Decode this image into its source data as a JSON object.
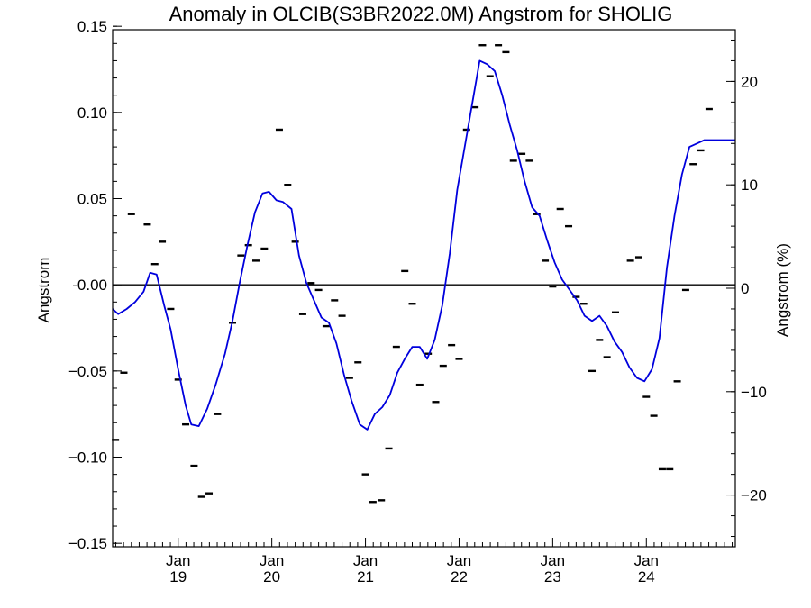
{
  "chart_data": {
    "type": "line",
    "title": "Anomaly in OLCIB(S3BR2022.0M) Angstrom for SHOLIG",
    "ylabel": "Angstrom",
    "ylabel_right": "Angstrom (%)",
    "xlabel": "",
    "ylim": [
      -0.152,
      0.148
    ],
    "ylim_right": [
      -25,
      25
    ],
    "xlim": [
      2018.3,
      2024.95
    ],
    "y_ticks": [
      -0.15,
      -0.1,
      -0.05,
      0.0,
      0.05,
      0.1,
      0.15
    ],
    "y_tick_labels": [
      "−0.15",
      "−0.10",
      "−0.05",
      "-0.00",
      "0.05",
      "0.10",
      "0.15"
    ],
    "y_right_ticks": [
      -20,
      -10,
      0,
      10,
      20
    ],
    "y_right_tick_labels": [
      "−20",
      "−10",
      "0",
      "10",
      "20"
    ],
    "x_ticks": [
      {
        "x": 2019.0,
        "month": "Jan",
        "year": "19"
      },
      {
        "x": 2020.0,
        "month": "Jan",
        "year": "20"
      },
      {
        "x": 2021.0,
        "month": "Jan",
        "year": "21"
      },
      {
        "x": 2022.0,
        "month": "Jan",
        "year": "22"
      },
      {
        "x": 2023.0,
        "month": "Jan",
        "year": "23"
      },
      {
        "x": 2024.0,
        "month": "Jan",
        "year": "24"
      }
    ],
    "zero_line": 0,
    "grid": false,
    "series": [
      {
        "kind": "monthly_points",
        "color": "#000000",
        "points": [
          [
            2018.33,
            -0.09
          ],
          [
            2018.42,
            -0.051
          ],
          [
            2018.5,
            0.041
          ],
          [
            2018.67,
            0.035
          ],
          [
            2018.75,
            0.012
          ],
          [
            2018.83,
            0.025
          ],
          [
            2018.92,
            -0.014
          ],
          [
            2019.0,
            -0.055
          ],
          [
            2019.08,
            -0.081
          ],
          [
            2019.17,
            -0.105
          ],
          [
            2019.25,
            -0.123
          ],
          [
            2019.33,
            -0.121
          ],
          [
            2019.42,
            -0.075
          ],
          [
            2019.58,
            -0.022
          ],
          [
            2019.67,
            0.017
          ],
          [
            2019.75,
            0.023
          ],
          [
            2019.83,
            0.014
          ],
          [
            2019.92,
            0.021
          ],
          [
            2020.08,
            0.09
          ],
          [
            2020.17,
            0.058
          ],
          [
            2020.25,
            0.025
          ],
          [
            2020.33,
            -0.017
          ],
          [
            2020.42,
            0.001
          ],
          [
            2020.5,
            -0.003
          ],
          [
            2020.58,
            -0.024
          ],
          [
            2020.67,
            -0.009
          ],
          [
            2020.75,
            -0.018
          ],
          [
            2020.83,
            -0.054
          ],
          [
            2020.92,
            -0.045
          ],
          [
            2021.0,
            -0.11
          ],
          [
            2021.08,
            -0.126
          ],
          [
            2021.17,
            -0.125
          ],
          [
            2021.25,
            -0.095
          ],
          [
            2021.33,
            -0.036
          ],
          [
            2021.42,
            0.008
          ],
          [
            2021.5,
            -0.011
          ],
          [
            2021.58,
            -0.058
          ],
          [
            2021.67,
            -0.04
          ],
          [
            2021.75,
            -0.068
          ],
          [
            2021.83,
            -0.047
          ],
          [
            2021.92,
            -0.035
          ],
          [
            2022.0,
            -0.043
          ],
          [
            2022.08,
            0.09
          ],
          [
            2022.17,
            0.103
          ],
          [
            2022.25,
            0.139
          ],
          [
            2022.33,
            0.121
          ],
          [
            2022.42,
            0.139
          ],
          [
            2022.5,
            0.135
          ],
          [
            2022.58,
            0.072
          ],
          [
            2022.67,
            0.076
          ],
          [
            2022.75,
            0.072
          ],
          [
            2022.83,
            0.041
          ],
          [
            2022.92,
            0.014
          ],
          [
            2023.0,
            -0.001
          ],
          [
            2023.08,
            0.044
          ],
          [
            2023.17,
            0.034
          ],
          [
            2023.25,
            -0.007
          ],
          [
            2023.33,
            -0.011
          ],
          [
            2023.42,
            -0.05
          ],
          [
            2023.5,
            -0.032
          ],
          [
            2023.58,
            -0.042
          ],
          [
            2023.67,
            -0.016
          ],
          [
            2023.83,
            0.014
          ],
          [
            2023.92,
            0.016
          ],
          [
            2024.0,
            -0.065
          ],
          [
            2024.08,
            -0.076
          ],
          [
            2024.17,
            -0.107
          ],
          [
            2024.25,
            -0.107
          ],
          [
            2024.33,
            -0.056
          ],
          [
            2024.42,
            -0.003
          ],
          [
            2024.5,
            0.07
          ],
          [
            2024.58,
            0.078
          ],
          [
            2024.67,
            0.102
          ]
        ]
      },
      {
        "kind": "smoothed_line",
        "color": "#0000dd",
        "points": [
          [
            2018.3,
            -0.014
          ],
          [
            2018.36,
            -0.017
          ],
          [
            2018.45,
            -0.014
          ],
          [
            2018.54,
            -0.01
          ],
          [
            2018.63,
            -0.004
          ],
          [
            2018.7,
            0.007
          ],
          [
            2018.77,
            0.006
          ],
          [
            2018.85,
            -0.012
          ],
          [
            2018.92,
            -0.026
          ],
          [
            2019.0,
            -0.049
          ],
          [
            2019.08,
            -0.07
          ],
          [
            2019.14,
            -0.081
          ],
          [
            2019.22,
            -0.082
          ],
          [
            2019.31,
            -0.072
          ],
          [
            2019.4,
            -0.058
          ],
          [
            2019.5,
            -0.04
          ],
          [
            2019.58,
            -0.021
          ],
          [
            2019.66,
            0.002
          ],
          [
            2019.74,
            0.023
          ],
          [
            2019.82,
            0.042
          ],
          [
            2019.9,
            0.053
          ],
          [
            2019.97,
            0.054
          ],
          [
            2020.05,
            0.049
          ],
          [
            2020.12,
            0.048
          ],
          [
            2020.21,
            0.044
          ],
          [
            2020.29,
            0.017
          ],
          [
            2020.37,
            0.001
          ],
          [
            2020.45,
            -0.009
          ],
          [
            2020.53,
            -0.019
          ],
          [
            2020.61,
            -0.022
          ],
          [
            2020.69,
            -0.034
          ],
          [
            2020.77,
            -0.052
          ],
          [
            2020.85,
            -0.067
          ],
          [
            2020.94,
            -0.081
          ],
          [
            2021.02,
            -0.084
          ],
          [
            2021.1,
            -0.075
          ],
          [
            2021.18,
            -0.071
          ],
          [
            2021.26,
            -0.064
          ],
          [
            2021.34,
            -0.051
          ],
          [
            2021.42,
            -0.043
          ],
          [
            2021.5,
            -0.036
          ],
          [
            2021.58,
            -0.036
          ],
          [
            2021.66,
            -0.043
          ],
          [
            2021.74,
            -0.032
          ],
          [
            2021.82,
            -0.012
          ],
          [
            2021.9,
            0.018
          ],
          [
            2021.98,
            0.055
          ],
          [
            2022.06,
            0.08
          ],
          [
            2022.14,
            0.105
          ],
          [
            2022.22,
            0.13
          ],
          [
            2022.3,
            0.128
          ],
          [
            2022.38,
            0.124
          ],
          [
            2022.46,
            0.11
          ],
          [
            2022.54,
            0.093
          ],
          [
            2022.62,
            0.078
          ],
          [
            2022.7,
            0.06
          ],
          [
            2022.78,
            0.045
          ],
          [
            2022.86,
            0.04
          ],
          [
            2022.94,
            0.026
          ],
          [
            2023.02,
            0.013
          ],
          [
            2023.1,
            0.003
          ],
          [
            2023.18,
            -0.003
          ],
          [
            2023.26,
            -0.009
          ],
          [
            2023.34,
            -0.018
          ],
          [
            2023.42,
            -0.021
          ],
          [
            2023.5,
            -0.018
          ],
          [
            2023.58,
            -0.024
          ],
          [
            2023.66,
            -0.033
          ],
          [
            2023.74,
            -0.039
          ],
          [
            2023.82,
            -0.048
          ],
          [
            2023.9,
            -0.054
          ],
          [
            2023.98,
            -0.056
          ],
          [
            2024.06,
            -0.049
          ],
          [
            2024.14,
            -0.031
          ],
          [
            2024.22,
            0.01
          ],
          [
            2024.3,
            0.04
          ],
          [
            2024.38,
            0.064
          ],
          [
            2024.46,
            0.08
          ],
          [
            2024.54,
            0.082
          ],
          [
            2024.62,
            0.084
          ],
          [
            2024.7,
            0.084
          ],
          [
            2024.78,
            0.084
          ],
          [
            2024.86,
            0.084
          ],
          [
            2024.95,
            0.084
          ]
        ]
      }
    ]
  }
}
